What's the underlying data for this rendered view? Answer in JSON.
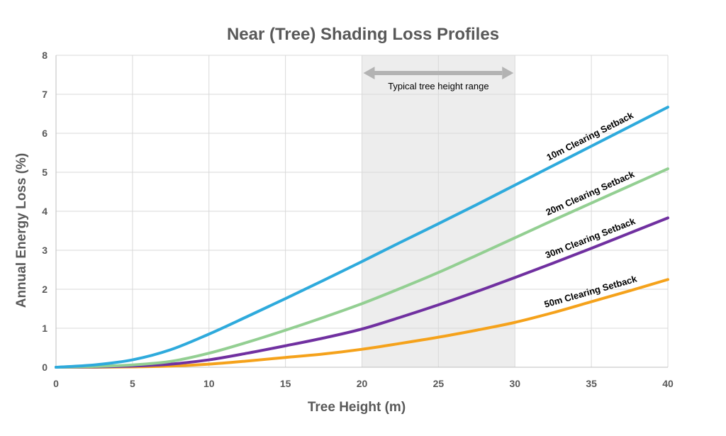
{
  "chart_data": {
    "type": "line",
    "title": "Near (Tree) Shading Loss Profiles",
    "xlabel": "Tree Height (m)",
    "ylabel": "Annual Energy Loss (%)",
    "xlim": [
      0,
      40
    ],
    "ylim": [
      0,
      8
    ],
    "xticks": [
      0,
      5,
      10,
      15,
      20,
      25,
      30,
      35,
      40
    ],
    "yticks": [
      0,
      1,
      2,
      3,
      4,
      5,
      6,
      7,
      8
    ],
    "grid": true,
    "legend": "inline labels",
    "shaded_region": {
      "x": [
        20,
        30
      ],
      "label": "Typical tree height range",
      "color": "#ededed",
      "arrow_color": "#b3b3b3"
    },
    "series": [
      {
        "name": "10m Clearing Setback",
        "color": "#2eaadc",
        "x": [
          0,
          2.5,
          5,
          7.5,
          10,
          12.5,
          15,
          17.5,
          20,
          22.5,
          25,
          27.5,
          30,
          32.5,
          35,
          37.5,
          40
        ],
        "y": [
          0,
          0.06,
          0.19,
          0.45,
          0.85,
          1.3,
          1.76,
          2.23,
          2.71,
          3.2,
          3.68,
          4.17,
          4.67,
          5.17,
          5.67,
          6.17,
          6.67
        ]
      },
      {
        "name": "20m Clearing Setback",
        "color": "#93cf92",
        "x": [
          0,
          2.5,
          5,
          7.5,
          10,
          12.5,
          15,
          17.5,
          20,
          22.5,
          25,
          27.5,
          30,
          32.5,
          35,
          37.5,
          40
        ],
        "y": [
          0,
          0.02,
          0.06,
          0.15,
          0.36,
          0.64,
          0.95,
          1.28,
          1.63,
          2.02,
          2.43,
          2.87,
          3.32,
          3.77,
          4.21,
          4.65,
          5.09
        ]
      },
      {
        "name": "30m Clearing Setback",
        "color": "#7030a0",
        "x": [
          0,
          2.5,
          5,
          7.5,
          10,
          12.5,
          15,
          17.5,
          20,
          22.5,
          25,
          27.5,
          30,
          32.5,
          35,
          37.5,
          40
        ],
        "y": [
          0,
          0.01,
          0.03,
          0.08,
          0.19,
          0.36,
          0.55,
          0.75,
          0.98,
          1.28,
          1.6,
          1.94,
          2.3,
          2.67,
          3.05,
          3.44,
          3.83
        ]
      },
      {
        "name": "50m Clearing Setback",
        "color": "#f5a21b",
        "x": [
          0,
          2.5,
          5,
          7.5,
          10,
          12.5,
          15,
          17.5,
          20,
          22.5,
          25,
          27.5,
          30,
          32.5,
          35,
          37.5,
          40
        ],
        "y": [
          0,
          0.0,
          0.01,
          0.03,
          0.08,
          0.16,
          0.25,
          0.34,
          0.46,
          0.61,
          0.77,
          0.95,
          1.15,
          1.4,
          1.68,
          1.96,
          2.25
        ]
      }
    ]
  }
}
